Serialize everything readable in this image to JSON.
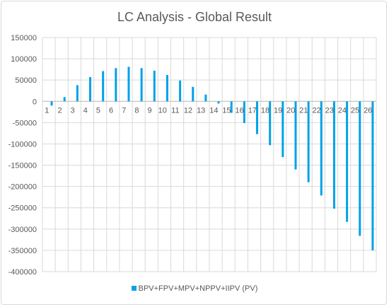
{
  "chart_data": {
    "type": "bar",
    "title": "LC Analysis - Global Result",
    "xlabel": "",
    "ylabel": "",
    "categories": [
      "1",
      "2",
      "3",
      "4",
      "5",
      "6",
      "7",
      "8",
      "9",
      "10",
      "11",
      "12",
      "13",
      "14",
      "15",
      "16",
      "17",
      "18",
      "19",
      "20",
      "21",
      "22",
      "23",
      "24",
      "25",
      "26"
    ],
    "series": [
      {
        "name": "BPV+FPV+MPV+NPPV+IIPV (PV)",
        "color": "#00a2e8",
        "values": [
          -10000,
          10000,
          38000,
          57000,
          71000,
          78000,
          81000,
          78000,
          72000,
          62000,
          49000,
          34000,
          16000,
          -5000,
          -27000,
          -51000,
          -77000,
          -103000,
          -131000,
          -160000,
          -190000,
          -221000,
          -252000,
          -283000,
          -316000,
          -350000
        ]
      }
    ],
    "ylim": [
      -400000,
      150000
    ],
    "yticks": [
      150000,
      100000,
      50000,
      0,
      -50000,
      -100000,
      -150000,
      -200000,
      -250000,
      -300000,
      -350000,
      -400000
    ],
    "grid": true,
    "legend": "bottom"
  }
}
